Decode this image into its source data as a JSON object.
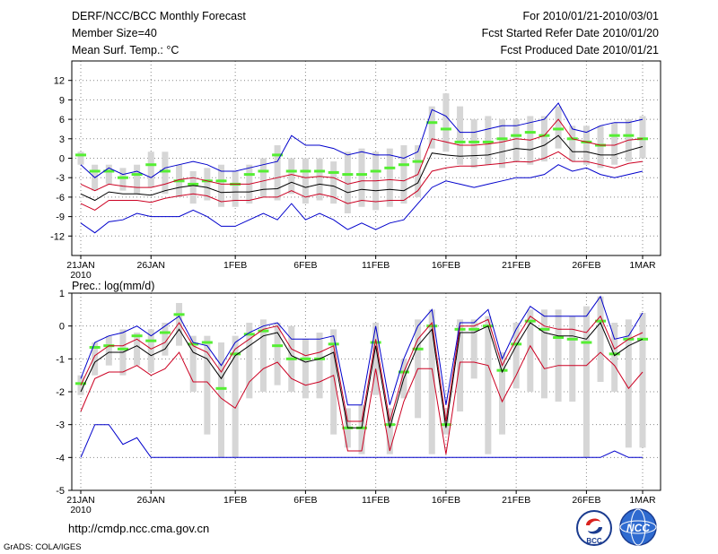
{
  "header": {
    "title_line1": "DERF/NCC/BCC Monthly Forecast",
    "title_line2": "Member Size=40",
    "title_line3": "Mean Surf. Temp.: °C",
    "right_line1": "For 2010/01/21-2010/03/01",
    "right_line2": "Fcst Started Refer Date 2010/01/20",
    "right_line3": "Fcst Produced Date 2010/01/21"
  },
  "footer": {
    "url": "http://cmdp.ncc.cma.gov.cn",
    "credit": "GrADS: COLA/IGES",
    "logo_bcc": "BCC",
    "logo_ncc": "NCC"
  },
  "colors": {
    "ensemble_mean": "#000000",
    "spread": "#cc0022",
    "envelope": "#0000cc",
    "bar": "#d6d6d6",
    "median": "#55ee33",
    "grid": "#888888"
  },
  "chart_data": [
    {
      "type": "line",
      "title": "Mean Surf. Temp.: °C",
      "xlabel": "",
      "ylabel": "°C",
      "ylim": [
        -15,
        15
      ],
      "yticks": [
        -12,
        -9,
        -6,
        -3,
        0,
        3,
        6,
        9,
        12
      ],
      "x_start": "2010-01-21",
      "x_days": 40,
      "xtick_positions": [
        0,
        5,
        11,
        16,
        21,
        26,
        31,
        36,
        40
      ],
      "xtick_labels": [
        "21JAN",
        "26JAN",
        "1FEB",
        "6FEB",
        "11FEB",
        "16FEB",
        "21FEB",
        "26FEB",
        "1MAR"
      ],
      "xtick_sublabel": "2010",
      "series": [
        {
          "name": "max",
          "values": [
            -10,
            -11.5,
            -9.8,
            -9.5,
            -8.5,
            -9,
            -9,
            -9,
            -8,
            -9,
            -10.5,
            -10.5,
            -9.5,
            -8.5,
            -9.5,
            -7,
            -9.5,
            -8.5,
            -9.5,
            -11,
            -10,
            -11,
            -10,
            -9.5,
            -7,
            -4.5,
            -3.5,
            -4,
            -4.5,
            -4,
            -3.5,
            -3,
            -3,
            -2.5,
            -1,
            -2,
            -1.5,
            -2.5,
            -3,
            -2.5,
            -2
          ]
        },
        {
          "name": "spread_low",
          "values": [
            -7,
            -8,
            -6.5,
            -6.5,
            -6.5,
            -6.8,
            -6.2,
            -5.8,
            -5.5,
            -5.8,
            -6.7,
            -6.5,
            -6.5,
            -6,
            -6,
            -5,
            -6,
            -5.5,
            -6,
            -7,
            -6.5,
            -6.7,
            -6.5,
            -6.5,
            -5,
            -2,
            -1.5,
            -1.2,
            -1.2,
            -1,
            -0.8,
            -0.5,
            -0.6,
            0,
            1,
            -0.5,
            -0.5,
            -1,
            -1.5,
            -0.8,
            -0.5
          ]
        },
        {
          "name": "mean",
          "values": [
            -5.5,
            -6.5,
            -5.2,
            -5.5,
            -5.5,
            -5.7,
            -5,
            -4.5,
            -4.2,
            -4.5,
            -5.3,
            -5.2,
            -5.2,
            -4.8,
            -4.7,
            -3.7,
            -4.5,
            -4,
            -4.3,
            -5.3,
            -4.8,
            -5,
            -4.8,
            -5,
            -3.8,
            0.8,
            0.5,
            0.3,
            0.4,
            0.5,
            1,
            1.5,
            1.3,
            2,
            3.5,
            1,
            1,
            0.5,
            0.5,
            1.2,
            1.8
          ]
        },
        {
          "name": "spread_high",
          "values": [
            -4,
            -5,
            -4,
            -4.3,
            -4.5,
            -4.5,
            -4,
            -3.3,
            -3,
            -3.5,
            -4,
            -4,
            -4,
            -3.5,
            -3,
            -2.5,
            -3,
            -2.8,
            -3,
            -4,
            -3.5,
            -3.5,
            -3.3,
            -3.5,
            -2.5,
            3,
            2.5,
            2,
            2,
            2.2,
            2.5,
            3,
            2.8,
            3.5,
            6,
            3,
            2.5,
            2,
            2,
            2.8,
            3
          ]
        },
        {
          "name": "min_envelope",
          "values": [
            -1,
            -3,
            -1.5,
            -2.5,
            -2,
            -3,
            -1.5,
            -1,
            -0.5,
            -1,
            -2,
            -2,
            -1.5,
            -1,
            -0.5,
            3.5,
            2,
            2,
            1.5,
            0.5,
            1,
            0.5,
            0.5,
            0,
            1,
            7.5,
            6.5,
            4,
            4,
            4.5,
            5,
            5,
            5.5,
            6,
            8.5,
            4.5,
            4,
            5,
            5.5,
            5.5,
            6
          ]
        },
        {
          "name": "median",
          "values": [
            0.5,
            -2,
            -2,
            -3,
            -2.5,
            -1,
            -2,
            -3.5,
            -4,
            -3.5,
            -3.5,
            -4,
            -2.5,
            -2,
            0.5,
            -2,
            -2,
            -2,
            -2.2,
            -2.5,
            -2.5,
            -2,
            -1.5,
            -1,
            -0.5,
            5.5,
            4.5,
            2.5,
            2.5,
            2.5,
            3,
            3.5,
            4,
            3.5,
            4.5,
            3,
            2.5,
            2,
            3.5,
            3.5,
            3
          ]
        },
        {
          "name": "bar_low",
          "values": [
            -1,
            -5,
            -4,
            -5,
            -5.5,
            -4.5,
            -5.5,
            -6,
            -7,
            -6.5,
            -7.5,
            -7.5,
            -7,
            -6,
            -6.5,
            -5.5,
            -7,
            -6.5,
            -7,
            -8.5,
            -7.5,
            -8,
            -7.5,
            -7,
            -6,
            1.5,
            1,
            -1,
            -1.5,
            -1,
            -1.5,
            -0.5,
            -1,
            -0.5,
            1.5,
            -0.5,
            -1,
            -1.5,
            -1,
            -0.5,
            0
          ]
        },
        {
          "name": "bar_high",
          "values": [
            1,
            -1,
            -1,
            -1.5,
            -1,
            1,
            1,
            -1,
            -2,
            -1.5,
            -1,
            -2,
            -1,
            0,
            2,
            0,
            0,
            0,
            -0.5,
            1,
            1.5,
            1,
            1.5,
            2,
            2,
            8,
            10,
            8,
            6,
            6.5,
            6,
            6,
            6.5,
            6.5,
            8,
            5,
            5,
            5,
            5.5,
            6,
            6.5
          ]
        }
      ]
    },
    {
      "type": "line",
      "title": "Prec.: log(mm/d)",
      "xlabel": "",
      "ylabel": "log(mm/d)",
      "ylim": [
        -5,
        1
      ],
      "yticks": [
        -5,
        -4,
        -3,
        -2,
        -1,
        0,
        1
      ],
      "x_start": "2010-01-21",
      "x_days": 40,
      "xtick_positions": [
        0,
        5,
        11,
        16,
        21,
        26,
        31,
        36,
        40
      ],
      "xtick_labels": [
        "21JAN",
        "26JAN",
        "1FEB",
        "6FEB",
        "11FEB",
        "16FEB",
        "21FEB",
        "26FEB",
        "1MAR"
      ],
      "xtick_sublabel": "2010",
      "series": [
        {
          "name": "min",
          "values": [
            -4,
            -3,
            -3,
            -3.6,
            -3.4,
            -4,
            -4,
            -4,
            -4,
            -4,
            -4,
            -4,
            -4,
            -4,
            -4,
            -4,
            -4,
            -4,
            -4,
            -4,
            -4,
            -4,
            -4,
            -4,
            -4,
            -4,
            -4,
            -4,
            -4,
            -4,
            -4,
            -4,
            -4,
            -4,
            -4,
            -4,
            -4,
            -4,
            -3.8,
            -4,
            -4
          ]
        },
        {
          "name": "spread_low",
          "values": [
            -2.6,
            -1.6,
            -1.4,
            -1.4,
            -1.2,
            -1.5,
            -1.3,
            -0.8,
            -1.7,
            -1.7,
            -2.2,
            -2.5,
            -1.7,
            -1.3,
            -1.1,
            -1.6,
            -1.8,
            -1.7,
            -1.5,
            -3.8,
            -3.8,
            -1.3,
            -3.8,
            -2.3,
            -1.3,
            -1.3,
            -3.9,
            -1.1,
            -1.1,
            -1.2,
            -2.3,
            -1.5,
            -0.6,
            -1.3,
            -1.2,
            -1.2,
            -1.2,
            -0.8,
            -1.2,
            -1.9,
            -1.4
          ]
        },
        {
          "name": "mean",
          "values": [
            -2,
            -1.1,
            -0.8,
            -0.8,
            -0.6,
            -0.9,
            -0.7,
            -0.1,
            -0.8,
            -1,
            -1.6,
            -0.9,
            -0.6,
            -0.3,
            -0.2,
            -0.9,
            -1.1,
            -1,
            -0.8,
            -3.1,
            -3.1,
            -0.6,
            -3.1,
            -1.6,
            -0.6,
            -0.1,
            -3.1,
            -0.2,
            -0.2,
            0,
            -1.4,
            -0.6,
            0.1,
            -0.2,
            -0.3,
            -0.3,
            -0.4,
            0.1,
            -0.9,
            -0.6,
            -0.4
          ]
        },
        {
          "name": "spread_high",
          "values": [
            -1.8,
            -0.9,
            -0.6,
            -0.6,
            -0.4,
            -0.7,
            -0.5,
            0.1,
            -0.6,
            -0.8,
            -1.4,
            -0.7,
            -0.4,
            -0.1,
            0,
            -0.7,
            -0.9,
            -0.8,
            -0.6,
            -2.9,
            -2.9,
            -0.4,
            -2.9,
            -1.4,
            -0.4,
            0.1,
            -2.9,
            0,
            0,
            0.2,
            -1.2,
            -0.4,
            0.3,
            0,
            -0.1,
            -0.1,
            -0.2,
            0.3,
            -0.7,
            -0.4,
            -0.2
          ]
        },
        {
          "name": "max_envelope",
          "values": [
            -1.6,
            -0.5,
            -0.3,
            -0.2,
            0,
            -0.3,
            0,
            0.3,
            -0.5,
            -0.6,
            -1.2,
            -0.5,
            -0.2,
            0,
            0.1,
            -0.4,
            -0.4,
            -0.4,
            -0.3,
            -2.4,
            -2.4,
            0,
            -2.4,
            -1,
            0,
            0.5,
            -2.4,
            0.1,
            0.1,
            0.5,
            -1,
            -0.1,
            0.6,
            0.3,
            0.3,
            0.3,
            0.3,
            0.9,
            -0.4,
            -0.3,
            0.4
          ]
        },
        {
          "name": "median",
          "values": [
            -1.75,
            -0.65,
            -0.6,
            -0.7,
            -0.3,
            -0.45,
            -0.2,
            0.35,
            -0.55,
            -0.5,
            -1.9,
            -0.85,
            -0.25,
            -0.15,
            -0.6,
            -1,
            -1,
            -1,
            -0.55,
            -3.1,
            -3.1,
            -0.5,
            -3,
            -1.4,
            -0.7,
            0,
            -3,
            -0.1,
            -0.1,
            0,
            -1.35,
            -0.55,
            0.15,
            -0.1,
            -0.35,
            -0.4,
            -0.5,
            0.15,
            -0.85,
            -0.4,
            -0.4
          ]
        },
        {
          "name": "bar_low",
          "values": [
            -2.1,
            -1.5,
            -1.2,
            -1.5,
            -1.2,
            -1.4,
            -0.9,
            -0.6,
            -2,
            -3.3,
            -4,
            -4,
            -2.2,
            -2,
            -1.8,
            -2,
            -2.2,
            -2.2,
            -3.3,
            -3.7,
            -3.9,
            -2.1,
            -3.9,
            -2.2,
            -2.8,
            -3.9,
            -3.3,
            -2.6,
            -1.6,
            -3.9,
            -3.3,
            -1.9,
            -2,
            -2.2,
            -2.3,
            -2.3,
            -4,
            -1.7,
            -2,
            -3.7,
            -3.7
          ]
        },
        {
          "name": "bar_high",
          "values": [
            -1.5,
            -0.5,
            -0.3,
            -0.1,
            -0.2,
            -0.1,
            0.1,
            0.7,
            -0.3,
            -0.3,
            -0.5,
            -0.3,
            0.1,
            0.2,
            0.1,
            0,
            -0.4,
            -0.2,
            -0.1,
            -2.5,
            -2.4,
            0.1,
            -2.5,
            -1,
            0.2,
            0.5,
            -2.5,
            0.2,
            0.2,
            0.3,
            -0.8,
            0.1,
            0.5,
            0.5,
            0.5,
            0.3,
            0.6,
            0.9,
            0.1,
            0.2,
            0.4
          ]
        }
      ]
    }
  ]
}
